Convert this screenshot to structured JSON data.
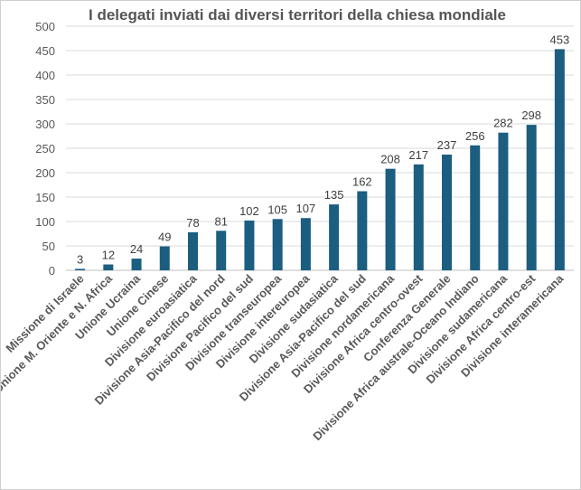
{
  "chart_data": {
    "type": "bar",
    "title": "I delegati inviati dai diversi territori della chiesa mondiale",
    "categories": [
      "Missione di Israele",
      "Unione M. Oriente e N. Africa",
      "Unione Ucraina",
      "Unione Cinese",
      "Divisione euroasiatica",
      "Divisione Asia-Pacifico del nord",
      "Divisione Pacifico del sud",
      "Divisione transeuropea",
      "Divisione intereuropea",
      "Divisione sudasiatica",
      "Divisione Asia-Pacifico del sud",
      "Divisione nordamericana",
      "Divisione Africa centro-ovest",
      "Conferenza Generale",
      "Divisione Africa australe-Oceano Indiano",
      "Divisione sudamericana",
      "Divisione Africa centro-est",
      "Divisione interamericana"
    ],
    "values": [
      3,
      12,
      24,
      49,
      78,
      81,
      102,
      105,
      107,
      135,
      162,
      208,
      217,
      237,
      256,
      282,
      298,
      453
    ],
    "ylim": [
      0,
      500
    ],
    "yticks": [
      0,
      50,
      100,
      150,
      200,
      250,
      300,
      350,
      400,
      450,
      500
    ],
    "grid": true,
    "data_labels": true,
    "bar_color": "#1b5e80",
    "xlabel": "",
    "ylabel": ""
  }
}
